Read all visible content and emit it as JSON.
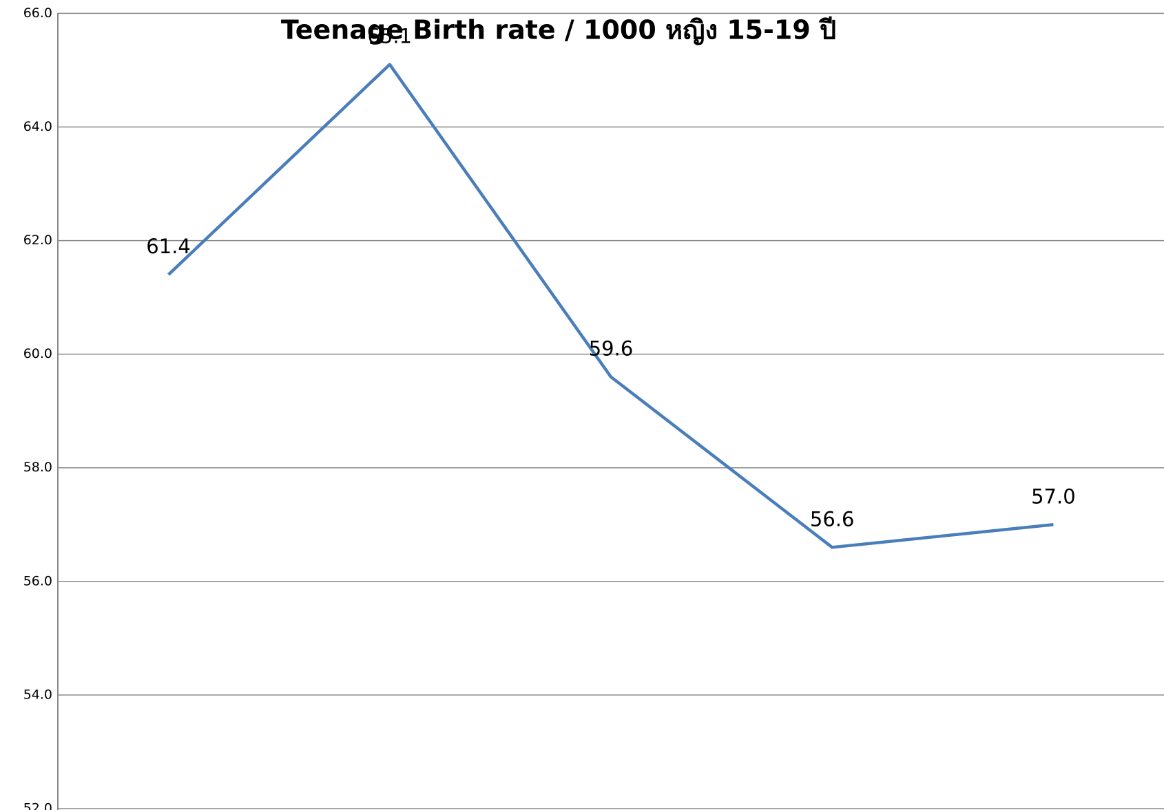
{
  "chart_data": {
    "type": "line",
    "title": "Teenage Birth rate / 1000 หญิง 15-19 ปี",
    "categories": [
      null,
      null,
      null,
      null,
      null
    ],
    "series": [
      {
        "color": "#4a7ebb",
        "values": [
          61.4,
          65.1,
          59.6,
          56.6,
          57.0
        ],
        "value_labels": [
          "61.4",
          "65.1",
          "59.6",
          "56.6",
          "57.0"
        ]
      }
    ],
    "ylim": [
      52,
      66
    ],
    "yticks": [
      {
        "value": 52,
        "label": "52.0"
      },
      {
        "value": 54,
        "label": "54.0"
      },
      {
        "value": 56,
        "label": "56.0"
      },
      {
        "value": 58,
        "label": "58.0"
      },
      {
        "value": 60,
        "label": "60.0"
      },
      {
        "value": 62,
        "label": "62.0"
      },
      {
        "value": 64,
        "label": "64.0"
      },
      {
        "value": 66,
        "label": "66.0"
      }
    ],
    "grid": true
  }
}
